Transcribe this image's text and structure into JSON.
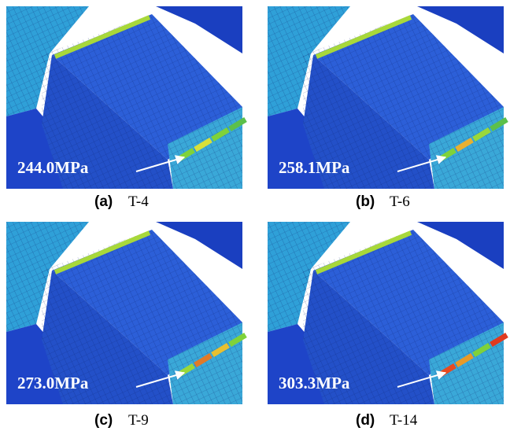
{
  "panels": [
    {
      "label": "(a)",
      "caption": "T-4",
      "stress": "244.0MPa"
    },
    {
      "label": "(b)",
      "caption": "T-6",
      "stress": "258.1MPa"
    },
    {
      "label": "(c)",
      "caption": "T-9",
      "stress": "273.0MPa"
    },
    {
      "label": "(d)",
      "caption": "T-14",
      "stress": "303.3MPa"
    }
  ]
}
